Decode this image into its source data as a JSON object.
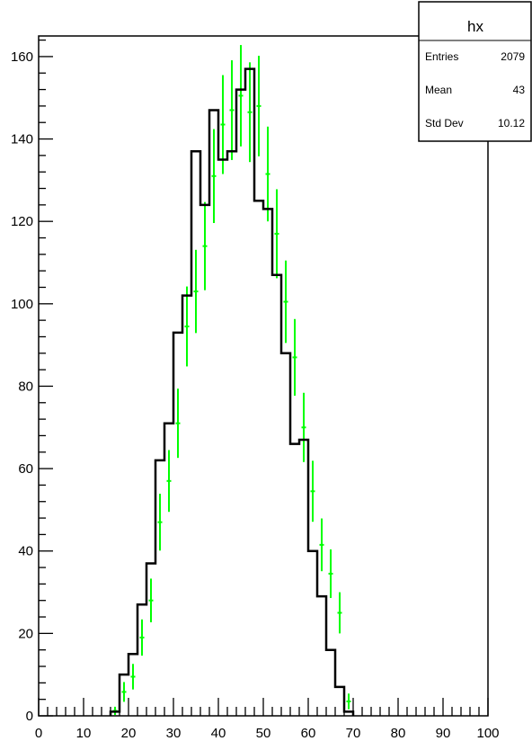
{
  "stats_box": {
    "title": "hx",
    "rows": [
      {
        "label": "Entries",
        "value": "2079"
      },
      {
        "label": "Mean",
        "value": "43"
      },
      {
        "label": "Std Dev",
        "value": "10.12"
      }
    ]
  },
  "chart_data": {
    "type": "histogram",
    "title": "",
    "xlabel": "",
    "ylabel": "",
    "xlim": [
      0,
      100
    ],
    "ylim": [
      0,
      165
    ],
    "x_major_ticks": [
      0,
      10,
      20,
      30,
      40,
      50,
      60,
      70,
      80,
      90,
      100
    ],
    "y_major_ticks": [
      0,
      20,
      40,
      60,
      80,
      100,
      120,
      140,
      160
    ],
    "grid": false,
    "bin_width": 2,
    "colors": {
      "histogram_line": "#000000",
      "points": "#00ff00",
      "frame": "#000000"
    },
    "series": [
      {
        "kind": "step-histogram",
        "color": "#000000",
        "bins": [
          {
            "x_low": 16,
            "x_high": 18,
            "value": 1
          },
          {
            "x_low": 18,
            "x_high": 20,
            "value": 10
          },
          {
            "x_low": 20,
            "x_high": 22,
            "value": 15
          },
          {
            "x_low": 22,
            "x_high": 24,
            "value": 27
          },
          {
            "x_low": 24,
            "x_high": 26,
            "value": 37
          },
          {
            "x_low": 26,
            "x_high": 28,
            "value": 62
          },
          {
            "x_low": 28,
            "x_high": 30,
            "value": 71
          },
          {
            "x_low": 30,
            "x_high": 32,
            "value": 93
          },
          {
            "x_low": 32,
            "x_high": 34,
            "value": 102
          },
          {
            "x_low": 34,
            "x_high": 36,
            "value": 137
          },
          {
            "x_low": 36,
            "x_high": 38,
            "value": 124
          },
          {
            "x_low": 38,
            "x_high": 40,
            "value": 147
          },
          {
            "x_low": 40,
            "x_high": 42,
            "value": 135
          },
          {
            "x_low": 42,
            "x_high": 44,
            "value": 137
          },
          {
            "x_low": 44,
            "x_high": 46,
            "value": 152
          },
          {
            "x_low": 46,
            "x_high": 48,
            "value": 157
          },
          {
            "x_low": 48,
            "x_high": 50,
            "value": 125
          },
          {
            "x_low": 50,
            "x_high": 52,
            "value": 123
          },
          {
            "x_low": 52,
            "x_high": 54,
            "value": 107
          },
          {
            "x_low": 54,
            "x_high": 56,
            "value": 88
          },
          {
            "x_low": 56,
            "x_high": 58,
            "value": 66
          },
          {
            "x_low": 58,
            "x_high": 60,
            "value": 67
          },
          {
            "x_low": 60,
            "x_high": 62,
            "value": 40
          },
          {
            "x_low": 62,
            "x_high": 64,
            "value": 29
          },
          {
            "x_low": 64,
            "x_high": 66,
            "value": 16
          },
          {
            "x_low": 66,
            "x_high": 68,
            "value": 7
          },
          {
            "x_low": 68,
            "x_high": 70,
            "value": 1
          }
        ]
      },
      {
        "kind": "points-with-error-bars",
        "color": "#00ff00",
        "points": [
          {
            "x": 17,
            "y": 1.2,
            "err": 1.0
          },
          {
            "x": 19,
            "y": 5.8,
            "err": 2.4
          },
          {
            "x": 21,
            "y": 9.5,
            "err": 3.1
          },
          {
            "x": 23,
            "y": 19.0,
            "err": 4.4
          },
          {
            "x": 25,
            "y": 28.0,
            "err": 5.3
          },
          {
            "x": 27,
            "y": 47.0,
            "err": 6.9
          },
          {
            "x": 29,
            "y": 57.0,
            "err": 7.5
          },
          {
            "x": 31,
            "y": 71.0,
            "err": 8.4
          },
          {
            "x": 33,
            "y": 94.5,
            "err": 9.7
          },
          {
            "x": 35,
            "y": 103.0,
            "err": 10.1
          },
          {
            "x": 37,
            "y": 114.0,
            "err": 10.7
          },
          {
            "x": 39,
            "y": 131.0,
            "err": 11.4
          },
          {
            "x": 41,
            "y": 143.5,
            "err": 12.0
          },
          {
            "x": 43,
            "y": 147.0,
            "err": 12.1
          },
          {
            "x": 45,
            "y": 150.5,
            "err": 12.3
          },
          {
            "x": 47,
            "y": 146.5,
            "err": 12.1
          },
          {
            "x": 49,
            "y": 148.0,
            "err": 12.2
          },
          {
            "x": 51,
            "y": 131.5,
            "err": 11.5
          },
          {
            "x": 53,
            "y": 117.0,
            "err": 10.8
          },
          {
            "x": 55,
            "y": 100.5,
            "err": 10.0
          },
          {
            "x": 57,
            "y": 87.0,
            "err": 9.3
          },
          {
            "x": 59,
            "y": 70.0,
            "err": 8.4
          },
          {
            "x": 61,
            "y": 54.5,
            "err": 7.4
          },
          {
            "x": 63,
            "y": 41.5,
            "err": 6.4
          },
          {
            "x": 65,
            "y": 34.5,
            "err": 5.9
          },
          {
            "x": 67,
            "y": 25.0,
            "err": 5.0
          },
          {
            "x": 69,
            "y": 3.5,
            "err": 1.9
          }
        ]
      }
    ]
  }
}
